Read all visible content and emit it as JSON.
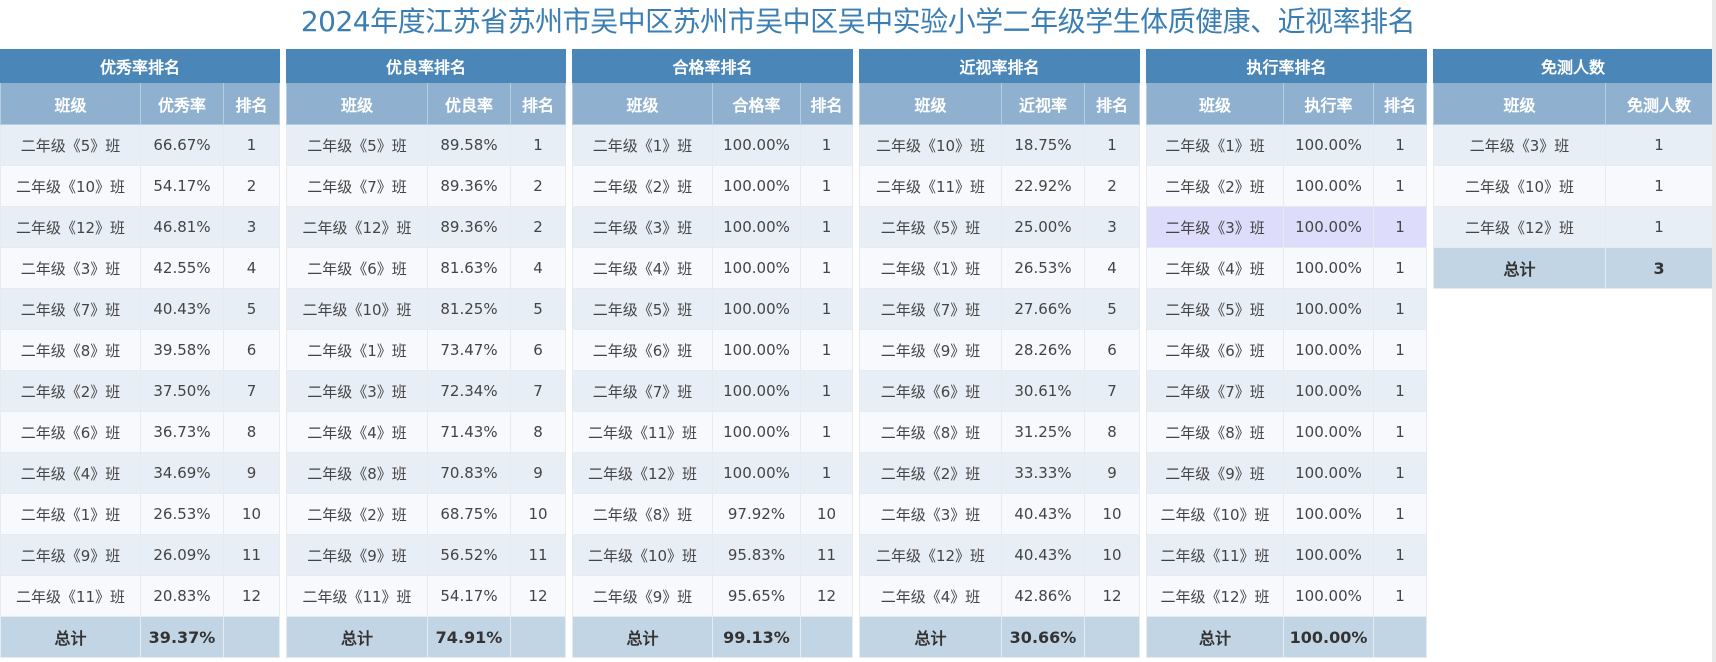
{
  "title": "2024年度江苏省苏州市吴中区苏州市吴中区吴中实验小学二年级学生体质健康、近视率排名",
  "tables": [
    {
      "caption": "优秀率排名",
      "headers": [
        "班级",
        "优秀率",
        "排名"
      ],
      "rows": [
        [
          "二年级《5》班",
          "66.67%",
          "1"
        ],
        [
          "二年级《10》班",
          "54.17%",
          "2"
        ],
        [
          "二年级《12》班",
          "46.81%",
          "3"
        ],
        [
          "二年级《3》班",
          "42.55%",
          "4"
        ],
        [
          "二年级《7》班",
          "40.43%",
          "5"
        ],
        [
          "二年级《8》班",
          "39.58%",
          "6"
        ],
        [
          "二年级《2》班",
          "37.50%",
          "7"
        ],
        [
          "二年级《6》班",
          "36.73%",
          "8"
        ],
        [
          "二年级《4》班",
          "34.69%",
          "9"
        ],
        [
          "二年级《1》班",
          "26.53%",
          "10"
        ],
        [
          "二年级《9》班",
          "26.09%",
          "11"
        ],
        [
          "二年级《11》班",
          "20.83%",
          "12"
        ]
      ],
      "total": [
        "总计",
        "39.37%",
        ""
      ]
    },
    {
      "caption": "优良率排名",
      "headers": [
        "班级",
        "优良率",
        "排名"
      ],
      "rows": [
        [
          "二年级《5》班",
          "89.58%",
          "1"
        ],
        [
          "二年级《7》班",
          "89.36%",
          "2"
        ],
        [
          "二年级《12》班",
          "89.36%",
          "2"
        ],
        [
          "二年级《6》班",
          "81.63%",
          "4"
        ],
        [
          "二年级《10》班",
          "81.25%",
          "5"
        ],
        [
          "二年级《1》班",
          "73.47%",
          "6"
        ],
        [
          "二年级《3》班",
          "72.34%",
          "7"
        ],
        [
          "二年级《4》班",
          "71.43%",
          "8"
        ],
        [
          "二年级《8》班",
          "70.83%",
          "9"
        ],
        [
          "二年级《2》班",
          "68.75%",
          "10"
        ],
        [
          "二年级《9》班",
          "56.52%",
          "11"
        ],
        [
          "二年级《11》班",
          "54.17%",
          "12"
        ]
      ],
      "total": [
        "总计",
        "74.91%",
        ""
      ]
    },
    {
      "caption": "合格率排名",
      "headers": [
        "班级",
        "合格率",
        "排名"
      ],
      "rows": [
        [
          "二年级《1》班",
          "100.00%",
          "1"
        ],
        [
          "二年级《2》班",
          "100.00%",
          "1"
        ],
        [
          "二年级《3》班",
          "100.00%",
          "1"
        ],
        [
          "二年级《4》班",
          "100.00%",
          "1"
        ],
        [
          "二年级《5》班",
          "100.00%",
          "1"
        ],
        [
          "二年级《6》班",
          "100.00%",
          "1"
        ],
        [
          "二年级《7》班",
          "100.00%",
          "1"
        ],
        [
          "二年级《11》班",
          "100.00%",
          "1"
        ],
        [
          "二年级《12》班",
          "100.00%",
          "1"
        ],
        [
          "二年级《8》班",
          "97.92%",
          "10"
        ],
        [
          "二年级《10》班",
          "95.83%",
          "11"
        ],
        [
          "二年级《9》班",
          "95.65%",
          "12"
        ]
      ],
      "total": [
        "总计",
        "99.13%",
        ""
      ]
    },
    {
      "caption": "近视率排名",
      "headers": [
        "班级",
        "近视率",
        "排名"
      ],
      "rows": [
        [
          "二年级《10》班",
          "18.75%",
          "1"
        ],
        [
          "二年级《11》班",
          "22.92%",
          "2"
        ],
        [
          "二年级《5》班",
          "25.00%",
          "3"
        ],
        [
          "二年级《1》班",
          "26.53%",
          "4"
        ],
        [
          "二年级《7》班",
          "27.66%",
          "5"
        ],
        [
          "二年级《9》班",
          "28.26%",
          "6"
        ],
        [
          "二年级《6》班",
          "30.61%",
          "7"
        ],
        [
          "二年级《8》班",
          "31.25%",
          "8"
        ],
        [
          "二年级《2》班",
          "33.33%",
          "9"
        ],
        [
          "二年级《3》班",
          "40.43%",
          "10"
        ],
        [
          "二年级《12》班",
          "40.43%",
          "10"
        ],
        [
          "二年级《4》班",
          "42.86%",
          "12"
        ]
      ],
      "total": [
        "总计",
        "30.66%",
        ""
      ]
    },
    {
      "caption": "执行率排名",
      "headers": [
        "班级",
        "执行率",
        "排名"
      ],
      "rows": [
        [
          "二年级《1》班",
          "100.00%",
          "1"
        ],
        [
          "二年级《2》班",
          "100.00%",
          "1"
        ],
        [
          "二年级《3》班",
          "100.00%",
          "1"
        ],
        [
          "二年级《4》班",
          "100.00%",
          "1"
        ],
        [
          "二年级《5》班",
          "100.00%",
          "1"
        ],
        [
          "二年级《6》班",
          "100.00%",
          "1"
        ],
        [
          "二年级《7》班",
          "100.00%",
          "1"
        ],
        [
          "二年级《8》班",
          "100.00%",
          "1"
        ],
        [
          "二年级《9》班",
          "100.00%",
          "1"
        ],
        [
          "二年级《10》班",
          "100.00%",
          "1"
        ],
        [
          "二年级《11》班",
          "100.00%",
          "1"
        ],
        [
          "二年级《12》班",
          "100.00%",
          "1"
        ]
      ],
      "total": [
        "总计",
        "100.00%",
        ""
      ],
      "highlighted_row": 2
    },
    {
      "caption": "免测人数",
      "headers": [
        "班级",
        "免测人数"
      ],
      "rows": [
        [
          "二年级《3》班",
          "1"
        ],
        [
          "二年级《10》班",
          "1"
        ],
        [
          "二年级《12》班",
          "1"
        ]
      ],
      "total": [
        "总计",
        "3"
      ]
    }
  ],
  "colors": {
    "title": "#3a7eb3",
    "caption_bg": "#4a86b8",
    "header_bg": "#8fb1cf",
    "row_odd": "#e8eef5",
    "row_even": "#f7f9fc",
    "total_bg": "#c2d5e5",
    "highlight": "#dedcfb"
  }
}
